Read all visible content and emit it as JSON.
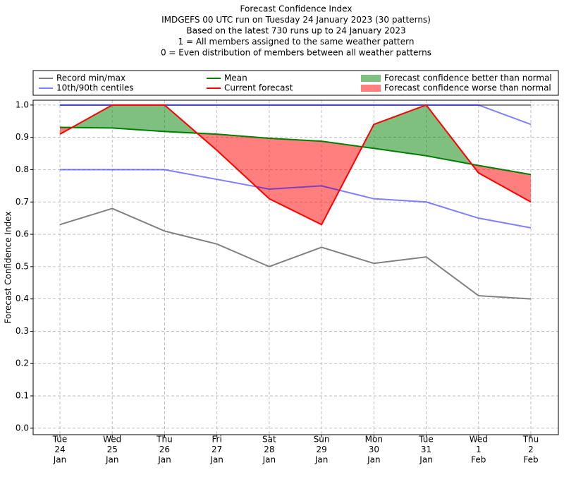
{
  "chart_data": {
    "type": "line",
    "title": [
      "Forecast Confidence Index",
      "IMDGEFS 00 UTC run on Tuesday 24 January 2023 (30 patterns)",
      "Based on the latest 730 runs up to 24 January 2023",
      "1 = All members assigned to the same weather pattern",
      "0 = Even distribution of members between all weather patterns"
    ],
    "ylabel": "Forecast Confidence Index",
    "categories": [
      [
        "Tue",
        "24",
        "Jan"
      ],
      [
        "Wed",
        "25",
        "Jan"
      ],
      [
        "Thu",
        "26",
        "Jan"
      ],
      [
        "Fri",
        "27",
        "Jan"
      ],
      [
        "Sat",
        "28",
        "Jan"
      ],
      [
        "Sun",
        "29",
        "Jan"
      ],
      [
        "Mon",
        "30",
        "Jan"
      ],
      [
        "Tue",
        "31",
        "Jan"
      ],
      [
        "Wed",
        "1",
        "Feb"
      ],
      [
        "Thu",
        "2",
        "Feb"
      ]
    ],
    "series": [
      {
        "name": "Record min/max",
        "color": "#808080",
        "alpha": 1,
        "lower": [
          0.63,
          0.68,
          0.61,
          0.57,
          0.5,
          0.56,
          0.51,
          0.53,
          0.41,
          0.4
        ],
        "upper": [
          1.0,
          1.0,
          1.0,
          1.0,
          1.0,
          1.0,
          1.0,
          1.0,
          1.0,
          1.0
        ]
      },
      {
        "name": "10th/90th centiles",
        "color": "#0000ff",
        "alpha": 0.5,
        "lower": [
          0.8,
          0.8,
          0.8,
          0.77,
          0.74,
          0.75,
          0.71,
          0.7,
          0.65,
          0.62
        ],
        "upper": [
          1.0,
          1.0,
          1.0,
          1.0,
          1.0,
          1.0,
          1.0,
          1.0,
          1.0,
          0.94
        ]
      },
      {
        "name": "Mean",
        "color": "#008000",
        "alpha": 1,
        "values": [
          0.931,
          0.929,
          0.918,
          0.91,
          0.897,
          0.888,
          0.866,
          0.843,
          0.813,
          0.785
        ]
      },
      {
        "name": "Current forecast",
        "color": "#ff0000",
        "alpha": 1,
        "values": [
          0.91,
          1.0,
          1.0,
          0.86,
          0.71,
          0.63,
          0.94,
          1.0,
          0.79,
          0.7
        ]
      }
    ],
    "fills": [
      {
        "name": "Forecast confidence better than normal",
        "color": "#008000",
        "alpha": 0.5
      },
      {
        "name": "Forecast confidence worse than normal",
        "color": "#ff0000",
        "alpha": 0.5
      }
    ],
    "ylim": [
      -0.02,
      1.015
    ],
    "yticks": [
      {
        "value": 0,
        "label": "0.0"
      },
      0.1,
      0.2,
      0.3,
      0.4,
      0.5,
      0.6,
      0.7,
      0.8,
      0.9,
      {
        "value": 1,
        "label": "1.0"
      }
    ],
    "grid": true
  }
}
